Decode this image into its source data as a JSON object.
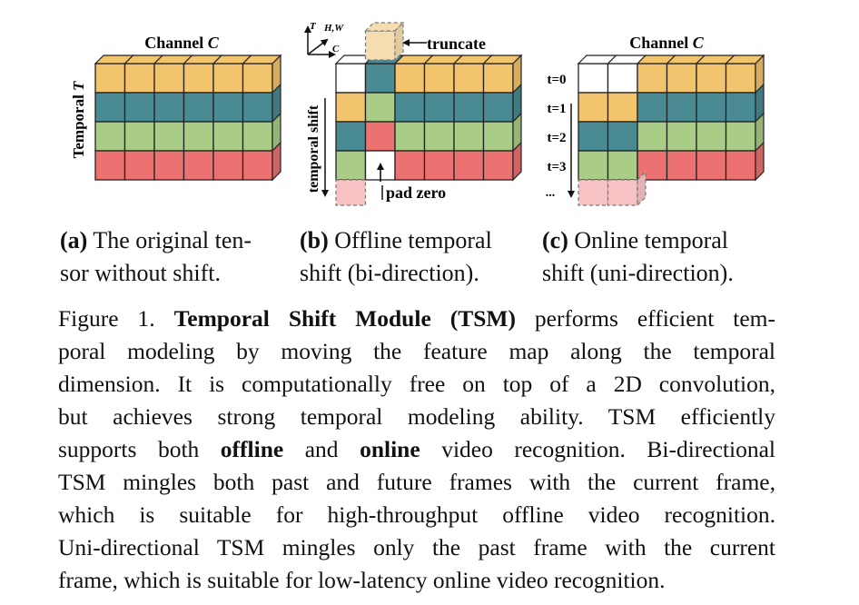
{
  "colors": {
    "orange": "#F2C46D",
    "teal": "#4A8A93",
    "green": "#A9CD87",
    "red": "#EC7171",
    "orange_faded": "#F6DDB0",
    "red_faded": "#F6C2C4",
    "edge": "#222222"
  },
  "panel_a": {
    "title": "Channel ",
    "title_var": "C",
    "ylabel": "Temporal ",
    "ylabel_var": "T"
  },
  "panel_b": {
    "axis_t": "T",
    "axis_hw": "H,W",
    "axis_c": "C",
    "truncate_label": "truncate",
    "pad_label": "pad zero",
    "ylabel": "temporal shift"
  },
  "panel_c": {
    "title": "Channel ",
    "title_var": "C",
    "time_labels": [
      "t=0",
      "t=1",
      "t=2",
      "t=3"
    ],
    "ellipsis": "..."
  },
  "subcaptions": {
    "a": {
      "tag": "(a)",
      "line1": " The original ten-",
      "line2": "sor without shift."
    },
    "b": {
      "tag": "(b)",
      "line1": " Offline temporal",
      "line2": "shift (bi-direction)."
    },
    "c": {
      "tag": "(c)",
      "line1": " Online temporal",
      "line2": "shift (uni-direction)."
    }
  },
  "caption": {
    "prefix": "Figure 1. ",
    "bold_title": "Temporal Shift Module (TSM)",
    "line1_rest": " performs efficient tem-",
    "line2": "poral modeling by moving the feature map along the temporal",
    "line3": "dimension. It is computationally free on top of a 2D convolution,",
    "line4": "but achieves strong temporal modeling ability.  TSM efficiently",
    "line5_a": "supports both ",
    "line5_bold1": "offline",
    "line5_b": " and ",
    "line5_bold2": "online",
    "line5_c": " video recognition. Bi-directional",
    "line6": "TSM mingles both past and future frames with the current frame,",
    "line7": "which is suitable for high-throughput offline video recognition.",
    "line8": "Uni-directional TSM mingles only the past frame with the current",
    "line9": "frame, which is suitable for low-latency online video recognition."
  }
}
